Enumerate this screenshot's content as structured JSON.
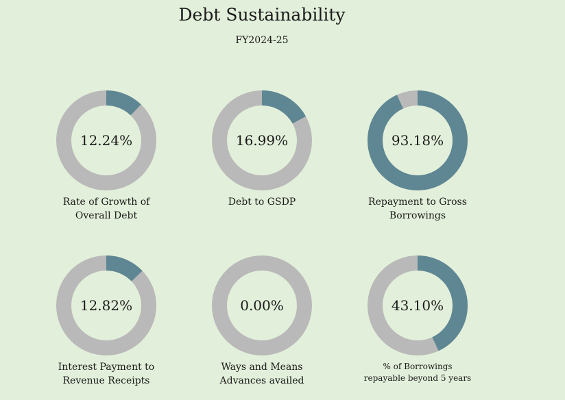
{
  "header": {
    "title": "Debt Sustainability",
    "subtitle": "FY2024-25"
  },
  "colors": {
    "background": "#e2efda",
    "ring_track": "#b9b9b9",
    "ring_fill": "#5e8793"
  },
  "chart_data": [
    {
      "type": "pie",
      "value": 12.24,
      "display": "12.24%",
      "label_line1": "Rate of Growth of",
      "label_line2": "Overall Debt"
    },
    {
      "type": "pie",
      "value": 16.99,
      "display": "16.99%",
      "label_line1": "Debt to GSDP",
      "label_line2": ""
    },
    {
      "type": "pie",
      "value": 93.18,
      "display": "93.18%",
      "label_line1": "Repayment to Gross",
      "label_line2": "Borrowings"
    },
    {
      "type": "pie",
      "value": 12.82,
      "display": "12.82%",
      "label_line1": "Interest Payment to",
      "label_line2": "Revenue Receipts"
    },
    {
      "type": "pie",
      "value": 0.0,
      "display": "0.00%",
      "label_line1": "Ways and Means",
      "label_line2": "Advances availed"
    },
    {
      "type": "pie",
      "value": 43.1,
      "display": "43.10%",
      "label_line1": "% of Borrowings",
      "label_line2": "repayable beyond 5 years"
    }
  ]
}
